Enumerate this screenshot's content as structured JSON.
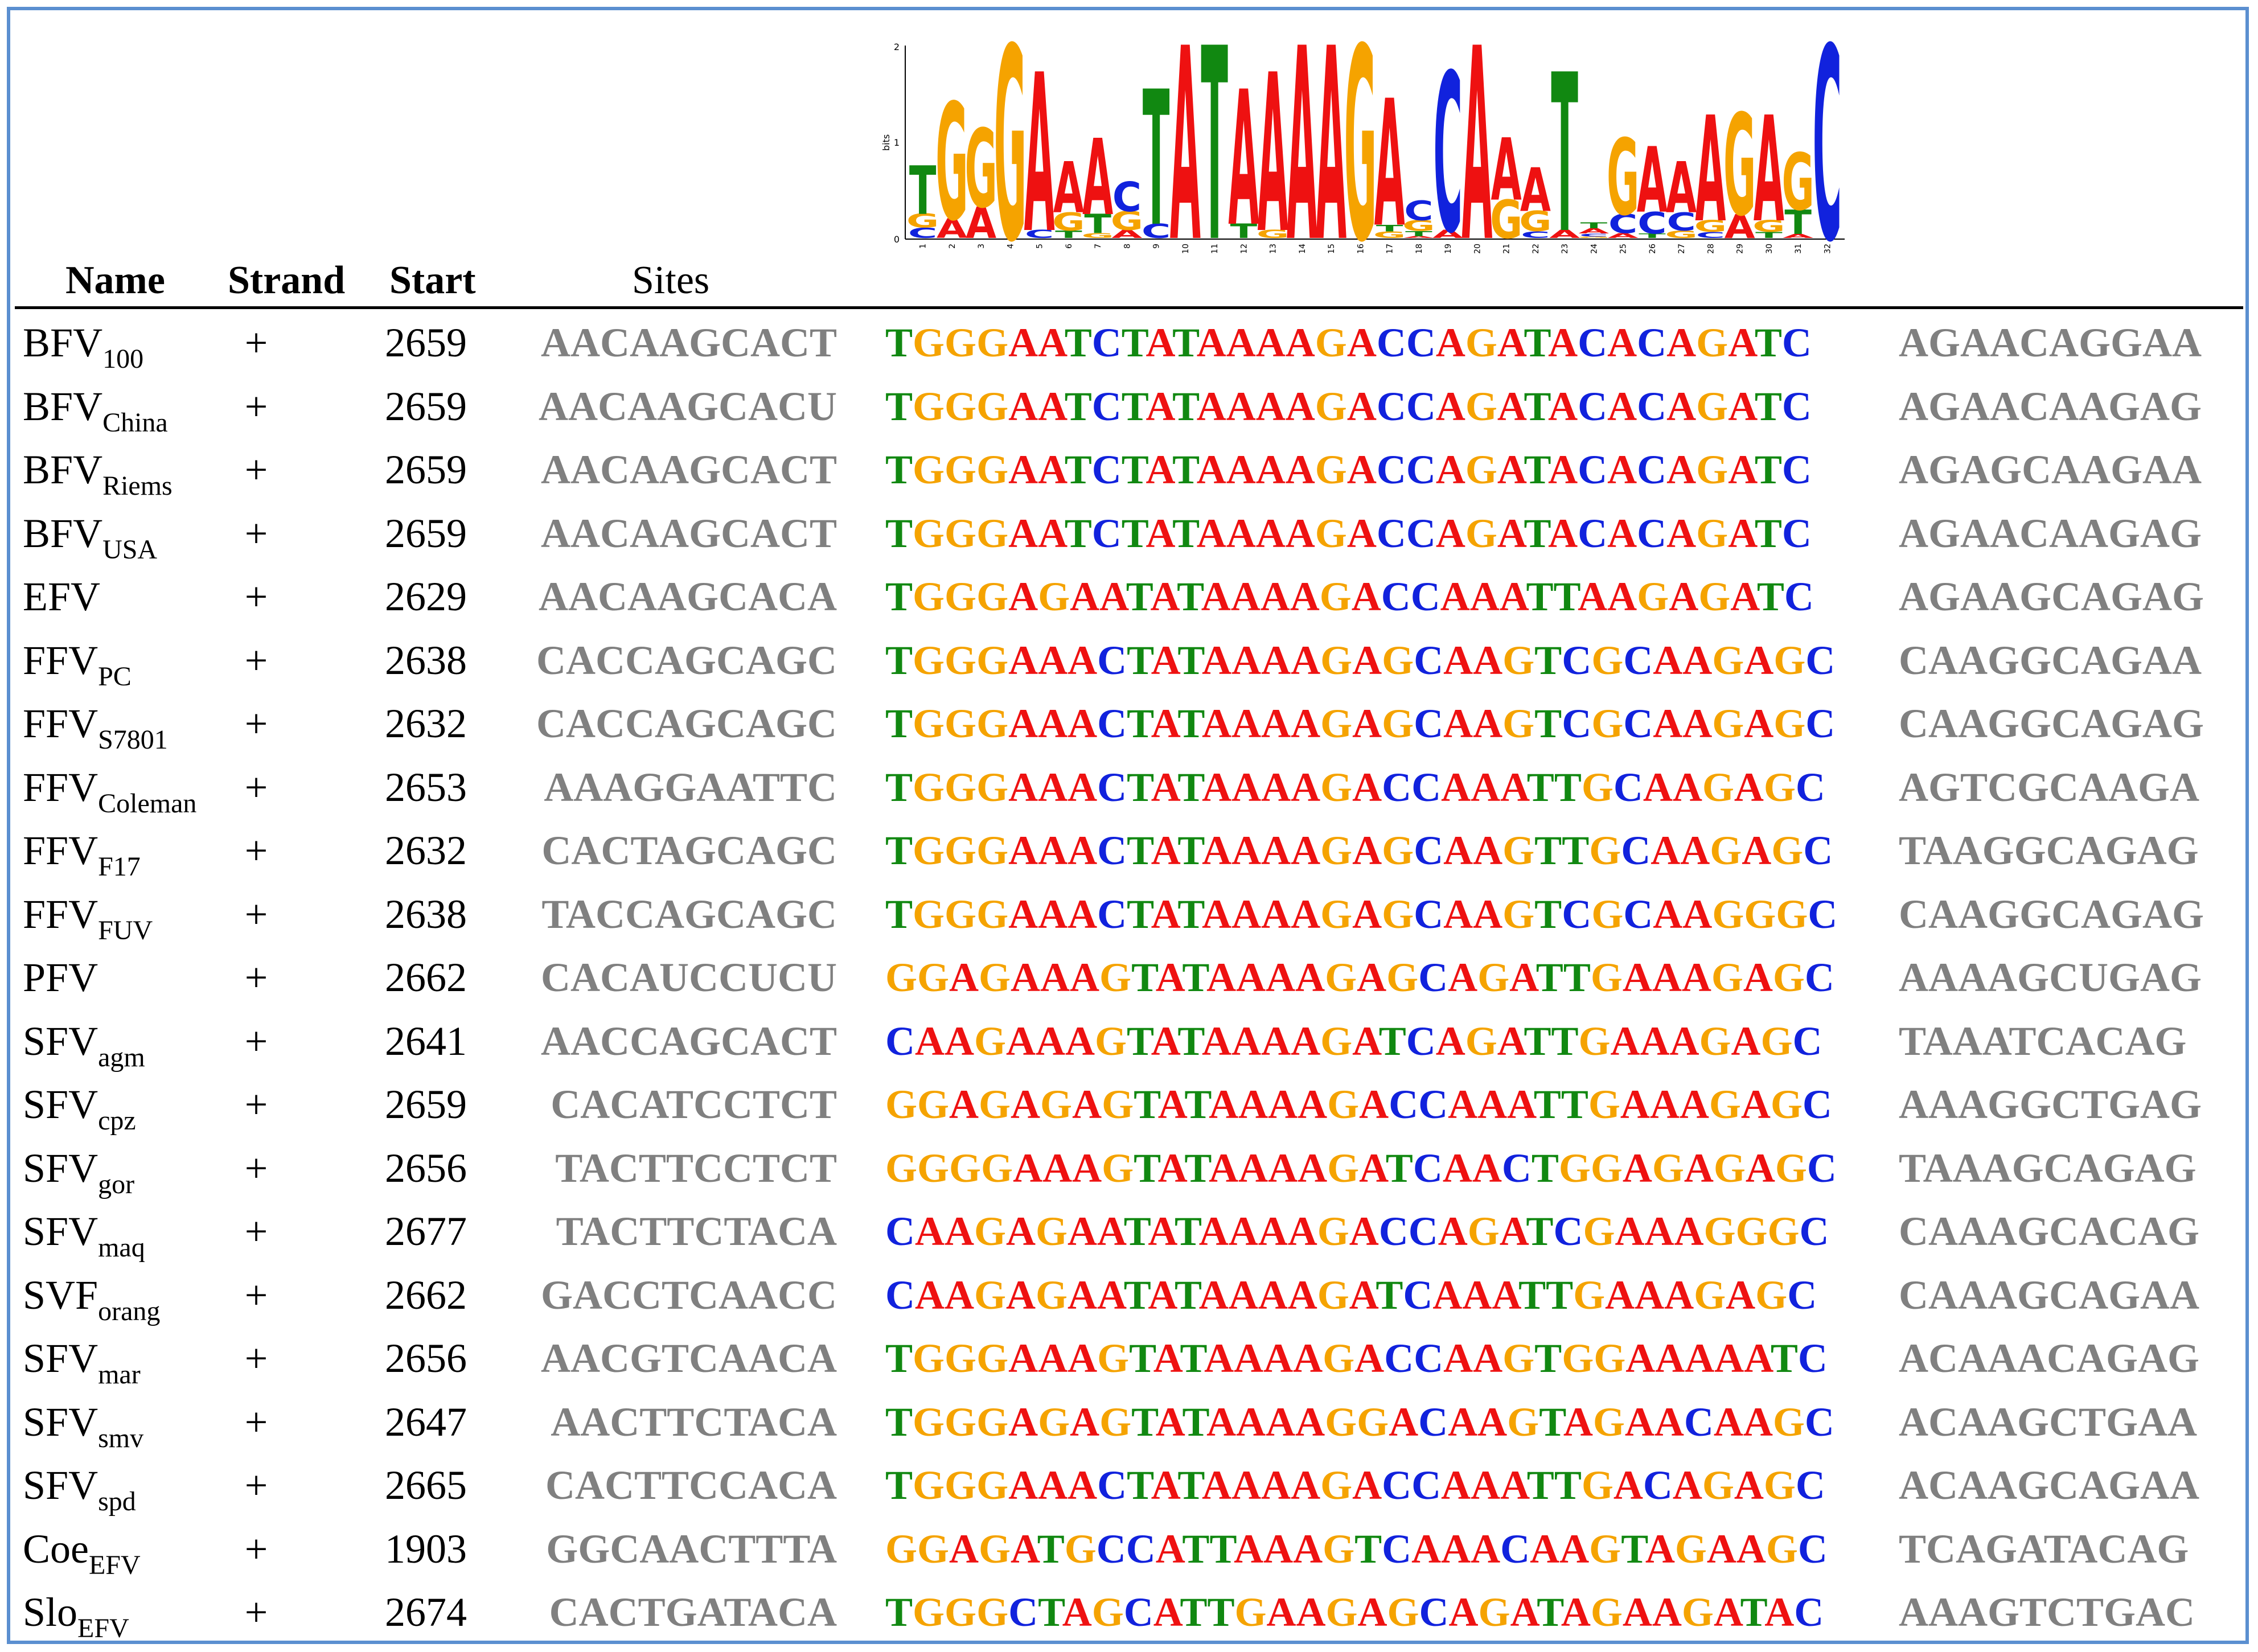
{
  "headers": {
    "name": "Name",
    "strand": "Strand",
    "start": "Start",
    "sites": "Sites"
  },
  "logo": {
    "y_axis_label": "bits",
    "y_ticks": [
      "0",
      "1",
      "2"
    ],
    "x_ticks": [
      "1",
      "2",
      "3",
      "4",
      "5",
      "6",
      "7",
      "8",
      "9",
      "10",
      "11",
      "12",
      "13",
      "14",
      "15",
      "16",
      "17",
      "18",
      "19",
      "20",
      "21",
      "22",
      "23",
      "24",
      "25",
      "26",
      "27",
      "28",
      "29",
      "30",
      "31",
      "32"
    ],
    "consensus": [
      "T",
      "G",
      "G",
      "G",
      "A",
      "A",
      "A",
      "C",
      "T",
      "A",
      "T",
      "A",
      "A",
      "A",
      "A",
      "G",
      "A",
      "C",
      "C",
      "A",
      "A",
      "A",
      "T",
      "G",
      "G",
      "A",
      "A",
      "A",
      "G",
      "A",
      "G",
      "C"
    ],
    "letter_colors": {
      "A": "#ee1111",
      "C": "#1122dd",
      "G": "#f5a300",
      "T": "#118811"
    }
  },
  "rows": [
    {
      "name": "BFV",
      "sub": "100",
      "strand": "+",
      "start": "2659",
      "upstream": "AACAAGCACT",
      "site": "TGGGAATCTATAAAAGACCAGATACACAGATC",
      "downstream": "AGAACAGGAA"
    },
    {
      "name": "BFV",
      "sub": "China",
      "strand": "+",
      "start": "2659",
      "upstream": "AACAAGCACU",
      "site": "TGGGAATCTATAAAAGACCAGATACACAGATC",
      "downstream": "AGAACAAGAG"
    },
    {
      "name": "BFV",
      "sub": "Riems",
      "strand": "+",
      "start": "2659",
      "upstream": "AACAAGCACT",
      "site": "TGGGAATCTATAAAAGACCAGATACACAGATC",
      "downstream": "AGAGCAAGAA"
    },
    {
      "name": "BFV",
      "sub": "USA",
      "strand": "+",
      "start": "2659",
      "upstream": "AACAAGCACT",
      "site": "TGGGAATCTATAAAAGACCAGATACACAGATC",
      "downstream": "AGAACAAGAG"
    },
    {
      "name": "EFV",
      "sub": "",
      "strand": "+",
      "start": "2629",
      "upstream": "AACAAGCACA",
      "site": "TGGGAGAATATAAAAGACCAAATTAAGAGATC",
      "downstream": "AGAAGCAGAG"
    },
    {
      "name": "FFV",
      "sub": "PC",
      "strand": "+",
      "start": "2638",
      "upstream": "CACCAGCAGC",
      "site": "TGGGAAACTATAAAAGAGCAAGTCGCAAGAGC",
      "downstream": "CAAGGCAGAA"
    },
    {
      "name": "FFV",
      "sub": "S7801",
      "strand": "+",
      "start": "2632",
      "upstream": "CACCAGCAGC",
      "site": "TGGGAAACTATAAAAGAGCAAGTCGCAAGAGC",
      "downstream": "CAAGGCAGAG"
    },
    {
      "name": "FFV",
      "sub": "Coleman",
      "strand": "+",
      "start": "2653",
      "upstream": "AAAGGAATTC",
      "site": "TGGGAAACTATAAAAGACCAAATTGCAAGAGC",
      "downstream": "AGTCGCAAGA"
    },
    {
      "name": "FFV",
      "sub": "F17",
      "strand": "+",
      "start": "2632",
      "upstream": "CACTAGCAGC",
      "site": "TGGGAAACTATAAAAGAGCAAGTTGCAAGAGC",
      "downstream": "TAAGGCAGAG"
    },
    {
      "name": "FFV",
      "sub": "FUV",
      "strand": "+",
      "start": "2638",
      "upstream": "TACCAGCAGC",
      "site": "TGGGAAACTATAAAAGAGCAAGTCGCAAGGGC",
      "downstream": "CAAGGCAGAG"
    },
    {
      "name": "PFV",
      "sub": "",
      "strand": "+",
      "start": "2662",
      "upstream": "CACAUCCUCU",
      "site": "GGAGAAAGTATAAAAGAGCAGATTGAAAGAGC",
      "downstream": "AAAAGCUGAG"
    },
    {
      "name": "SFV",
      "sub": "agm",
      "strand": "+",
      "start": "2641",
      "upstream": "AACCAGCACT",
      "site": "CAAGAAAGTATAAAAGATCAGATTGAAAGAGC",
      "downstream": "TAAATCACAG"
    },
    {
      "name": "SFV",
      "sub": "cpz",
      "strand": "+",
      "start": "2659",
      "upstream": "CACATCCTCT",
      "site": "GGAGAGAGTATAAAAGACCAAATTGAAAGAGC",
      "downstream": "AAAGGCTGAG"
    },
    {
      "name": "SFV",
      "sub": "gor",
      "strand": "+",
      "start": "2656",
      "upstream": "TACTTCCTCT",
      "site": "GGGGAAAGTATAAAAGATCAACTGGAGAGAGC",
      "downstream": "TAAAGCAGAG"
    },
    {
      "name": "SFV",
      "sub": "maq",
      "strand": "+",
      "start": "2677",
      "upstream": "TACTTCTACA",
      "site": "CAAGAGAATATAAAAGACCAGATCGAAAGGGC",
      "downstream": "CAAAGCACAG"
    },
    {
      "name": "SVF",
      "sub": "orang",
      "strand": "+",
      "start": "2662",
      "upstream": "GACCTCAACC",
      "site": "CAAGAGAATATAAAAGATCAAATTGAAAGAGC",
      "downstream": "CAAAGCAGAA"
    },
    {
      "name": "SFV",
      "sub": "mar",
      "strand": "+",
      "start": "2656",
      "upstream": "AACGTCAACA",
      "site": "TGGGAAAGTATAAAAGACCAAGTGGAAAAATC",
      "downstream": "ACAAACAGAG"
    },
    {
      "name": "SFV",
      "sub": "smv",
      "strand": "+",
      "start": "2647",
      "upstream": "AACTTCTACA",
      "site": "TGGGAGAGTATAAAAGGACAAGTAGAACAAGC",
      "downstream": "ACAAGCTGAA"
    },
    {
      "name": "SFV",
      "sub": "spd",
      "strand": "+",
      "start": "2665",
      "upstream": "CACTTCCACA",
      "site": "TGGGAAACTATAAAAGACCAAATTGACAGAGC",
      "downstream": "ACAAGCAGAA"
    },
    {
      "name": "Coe",
      "sub": "EFV",
      "strand": "+",
      "start": "1903",
      "upstream": "GGCAACTTTA",
      "site": "GGAGATGCCATTAAAGTCAAACAAGTAGAAGC",
      "downstream": "TCAGATACAG"
    },
    {
      "name": "Slo",
      "sub": "EFV",
      "strand": "+",
      "start": "2674",
      "upstream": "CACTGATACA",
      "site": "TGGGCTAGCATTGAAGAGCAGATAGAAGATAC",
      "downstream": "AAAGTCTGAC"
    }
  ]
}
